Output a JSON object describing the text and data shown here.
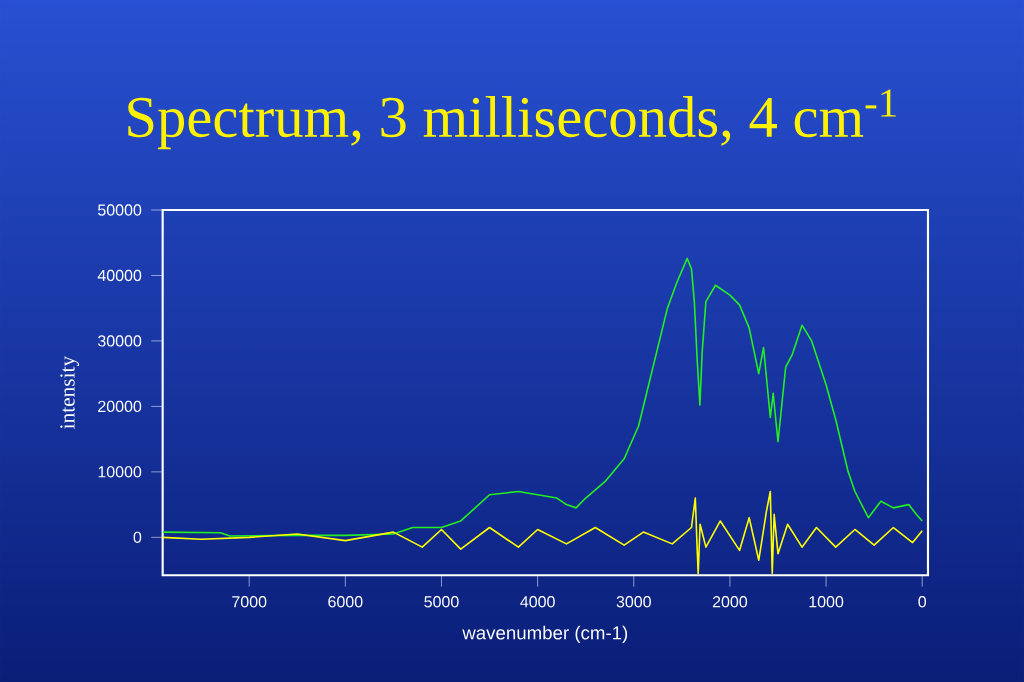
{
  "chart_data": {
    "type": "line",
    "title": "Spectrum, 3 milliseconds, 4 cm$^{-1}$",
    "xlabel": "wavenumber (cm-1)",
    "ylabel": "intensity",
    "xlim": [
      7900,
      -60
    ],
    "ylim": [
      -5800,
      50000
    ],
    "xticks": [
      7000,
      6000,
      5000,
      4000,
      3000,
      2000,
      1000,
      0
    ],
    "yticks": [
      0,
      10000,
      20000,
      30000,
      40000,
      50000
    ],
    "grid": false,
    "marker": "none",
    "line_style": "solid",
    "series": [
      {
        "color": "#22ee22",
        "x": [
          7900,
          7300,
          7200,
          6500,
          6000,
          5500,
          5300,
          5000,
          4800,
          4650,
          4500,
          4200,
          4000,
          3800,
          3700,
          3600,
          3500,
          3300,
          3100,
          2950,
          2800,
          2650,
          2550,
          2444,
          2400,
          2370,
          2340,
          2312,
          2290,
          2250,
          2150,
          2000,
          1900,
          1800,
          1700,
          1650,
          1580,
          1550,
          1500,
          1420,
          1350,
          1250,
          1150,
          1000,
          900,
          770,
          700,
          560,
          430,
          300,
          140,
          60,
          0
        ],
        "values": [
          800,
          700,
          200,
          300,
          300,
          500,
          1500,
          1500,
          2500,
          4500,
          6500,
          7000,
          6500,
          6000,
          5000,
          4500,
          6000,
          8500,
          12000,
          17000,
          26000,
          35000,
          39000,
          42600,
          41000,
          36000,
          27000,
          20200,
          28000,
          36000,
          38500,
          37000,
          35500,
          32000,
          25000,
          29000,
          18300,
          22000,
          14600,
          26000,
          28000,
          32400,
          30000,
          23300,
          18000,
          10000,
          7000,
          3000,
          5500,
          4500,
          5000,
          3500,
          2500
        ]
      },
      {
        "color": "#ffff00",
        "x": [
          7900,
          7500,
          7000,
          6500,
          6000,
          5500,
          5200,
          5000,
          4800,
          4500,
          4200,
          4000,
          3700,
          3400,
          3100,
          2900,
          2600,
          2400,
          2360,
          2340,
          2330,
          2310,
          2250,
          2100,
          1900,
          1800,
          1700,
          1620,
          1580,
          1560,
          1540,
          1500,
          1400,
          1250,
          1100,
          900,
          700,
          500,
          300,
          100,
          0
        ],
        "values": [
          0,
          -300,
          0,
          500,
          -500,
          800,
          -1500,
          1200,
          -1800,
          1500,
          -1500,
          1200,
          -1000,
          1500,
          -1200,
          800,
          -1000,
          1500,
          6000,
          -2000,
          -5500,
          2000,
          -1500,
          2500,
          -2000,
          3000,
          -3500,
          4000,
          7000,
          -5500,
          3500,
          -2500,
          2000,
          -1500,
          1500,
          -1500,
          1200,
          -1200,
          1500,
          -800,
          1000
        ]
      }
    ]
  }
}
